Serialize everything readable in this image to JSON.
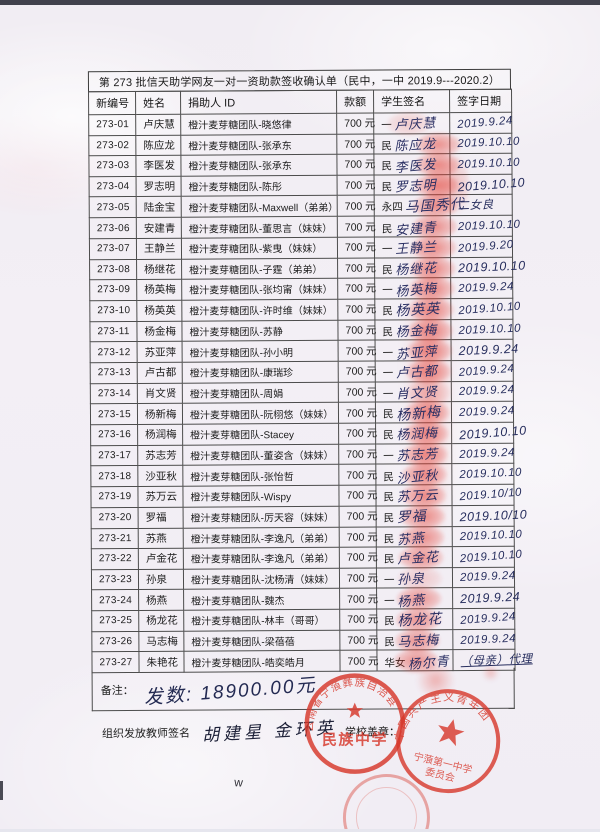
{
  "page": {
    "title": "第 273 批信天助学网友一对一资助款签收确认单（民中，一中 2019.9---2020.2）"
  },
  "table": {
    "headers": [
      "新编号",
      "姓名",
      "捐助人 ID",
      "款额",
      "学生签名",
      "签字日期"
    ],
    "rows": [
      {
        "id": "273-01",
        "name": "卢庆慧",
        "donor": "橙汁麦芽糖团队-晓悠律",
        "amount": "700 元",
        "school": "一",
        "sig": "卢庆慧",
        "date": "2019.9.24",
        "fp": "light"
      },
      {
        "id": "273-02",
        "name": "陈应龙",
        "donor": "橙汁麦芽糖团队-张承东",
        "amount": "700 元",
        "school": "民",
        "sig": "陈应龙",
        "date": "2019.10.10",
        "fp": "heavy"
      },
      {
        "id": "273-03",
        "name": "李医发",
        "donor": "橙汁麦芽糖团队-张承东",
        "amount": "700 元",
        "school": "民",
        "sig": "李医发",
        "date": "2019.10.10",
        "fp": "heavy"
      },
      {
        "id": "273-04",
        "name": "罗志明",
        "donor": "橙汁麦芽糖团队-陈彤",
        "amount": "700 元",
        "school": "民",
        "sig": "罗志明",
        "date": "2019.10.10",
        "fp": "heavy"
      },
      {
        "id": "273-05",
        "name": "陆金宝",
        "donor": "橙汁麦芽糖团队-Maxwell（弟弟）",
        "amount": "700 元",
        "school": "永四",
        "sig": "马国秀代",
        "date": "二女良",
        "fp": "heavy"
      },
      {
        "id": "273-06",
        "name": "安建青",
        "donor": "橙汁麦芽糖团队-董思言（妹妹）",
        "amount": "700 元",
        "school": "民",
        "sig": "安建青",
        "date": "2019.10.10",
        "fp": "heavy"
      },
      {
        "id": "273-07",
        "name": "王静兰",
        "donor": "橙汁麦芽糖团队-紫曳（妹妹）",
        "amount": "700 元",
        "school": "一",
        "sig": "王静兰",
        "date": "2019.9.20",
        "fp": "heavy"
      },
      {
        "id": "273-08",
        "name": "杨继花",
        "donor": "橙汁麦芽糖团队-子霆（弟弟）",
        "amount": "700 元",
        "school": "民",
        "sig": "杨继花",
        "date": "2019.10.10",
        "fp": "heavy"
      },
      {
        "id": "273-09",
        "name": "杨英梅",
        "donor": "橙汁麦芽糖团队-张均甯（妹妹）",
        "amount": "700 元",
        "school": "一",
        "sig": "杨英梅",
        "date": "2019.9.24",
        "fp": "heavy"
      },
      {
        "id": "273-10",
        "name": "杨英英",
        "donor": "橙汁麦芽糖团队-许时维（妹妹）",
        "amount": "700 元",
        "school": "民",
        "sig": "杨英英",
        "date": "2019.10.10",
        "fp": "heavy"
      },
      {
        "id": "273-11",
        "name": "杨金梅",
        "donor": "橙汁麦芽糖团队-苏静",
        "amount": "700 元",
        "school": "民",
        "sig": "杨金梅",
        "date": "2019.10.10",
        "fp": "heavy"
      },
      {
        "id": "273-12",
        "name": "苏亚萍",
        "donor": "橙汁麦芽糖团队-孙小明",
        "amount": "700 元",
        "school": "一",
        "sig": "苏亚萍",
        "date": "2019.9.24",
        "fp": "heavy"
      },
      {
        "id": "273-13",
        "name": "卢古都",
        "donor": "橙汁麦芽糖团队-康瑞珍",
        "amount": "700 元",
        "school": "一",
        "sig": "卢古都",
        "date": "2019.9.24",
        "fp": "heavy"
      },
      {
        "id": "273-14",
        "name": "肖文贤",
        "donor": "橙汁麦芽糖团队-周娟",
        "amount": "700 元",
        "school": "一",
        "sig": "肖文贤",
        "date": "2019.9.24",
        "fp": "light"
      },
      {
        "id": "273-15",
        "name": "杨新梅",
        "donor": "橙汁麦芽糖团队-阮栩悠（妹妹）",
        "amount": "700 元",
        "school": "民",
        "sig": "杨新梅",
        "date": "2019.9.24",
        "fp": "heavy"
      },
      {
        "id": "273-16",
        "name": "杨润梅",
        "donor": "橙汁麦芽糖团队-Stacey",
        "amount": "700 元",
        "school": "民",
        "sig": "杨润梅",
        "date": "2019.10.10",
        "fp": "heavy"
      },
      {
        "id": "273-17",
        "name": "苏志芳",
        "donor": "橙汁麦芽糖团队-董姿含（妹妹）",
        "amount": "700 元",
        "school": "一",
        "sig": "苏志芳",
        "date": "2019.9.24",
        "fp": "heavy"
      },
      {
        "id": "273-18",
        "name": "沙亚秋",
        "donor": "橙汁麦芽糖团队-张怡哲",
        "amount": "700 元",
        "school": "民",
        "sig": "沙亚秋",
        "date": "2019.10.10",
        "fp": "heavy"
      },
      {
        "id": "273-19",
        "name": "苏万云",
        "donor": "橙汁麦芽糖团队-Wispy",
        "amount": "700 元",
        "school": "民",
        "sig": "苏万云",
        "date": "2019.10/10",
        "fp": "heavy"
      },
      {
        "id": "273-20",
        "name": "罗福",
        "donor": "橙汁麦芽糖团队-厉天容（妹妹）",
        "amount": "700 元",
        "school": "民",
        "sig": "罗福",
        "date": "2019.10/10",
        "fp": "heavy"
      },
      {
        "id": "273-21",
        "name": "苏燕",
        "donor": "橙汁麦芽糖团队-李逸凡（弟弟）",
        "amount": "700 元",
        "school": "民",
        "sig": "苏燕",
        "date": "2019.10.10",
        "fp": "heavy"
      },
      {
        "id": "273-22",
        "name": "卢金花",
        "donor": "橙汁麦芽糖团队-李逸凡（弟弟）",
        "amount": "700 元",
        "school": "民",
        "sig": "卢金花",
        "date": "2019.10.10",
        "fp": "heavy"
      },
      {
        "id": "273-23",
        "name": "孙泉",
        "donor": "橙汁麦芽糖团队-沈杨清（妹妹）",
        "amount": "700 元",
        "school": "一",
        "sig": "孙泉",
        "date": "2019.9.24",
        "fp": "light"
      },
      {
        "id": "273-24",
        "name": "杨燕",
        "donor": "橙汁麦芽糖团队-魏杰",
        "amount": "700 元",
        "school": "一",
        "sig": "杨燕",
        "date": "2019.9.24",
        "fp": "heavy"
      },
      {
        "id": "273-25",
        "name": "杨龙花",
        "donor": "橙汁麦芽糖团队-林丰（哥哥）",
        "amount": "700 元",
        "school": "民",
        "sig": "杨龙花",
        "date": "2019.9.24",
        "fp": "heavy"
      },
      {
        "id": "273-26",
        "name": "马志梅",
        "donor": "橙汁麦芽糖团队-梁蓓蓓",
        "amount": "700 元",
        "school": "民",
        "sig": "马志梅",
        "date": "2019.9.24",
        "fp": "heavy"
      },
      {
        "id": "273-27",
        "name": "朱艳花",
        "donor": "橙汁麦芽糖团队-皓奕皓月",
        "amount": "700 元",
        "school": "华女",
        "sig": "杨尔青",
        "date": "（母亲）代理",
        "fp": "heavy",
        "underline_date": true
      }
    ]
  },
  "footer": {
    "remark_label": "备注：",
    "remark_handwriting": "发数: 18900.00元",
    "teacher_label": "组织发放教师签名",
    "teacher_signature": "胡建星 金环英",
    "stamp_label": "学校盖章：",
    "stray_mark": "w"
  },
  "stamps": {
    "left_arc": "云南省宁蒗彝族自治县",
    "left_center": "民族中学",
    "right_arc": "中国共产主义青年团",
    "right_line1": "宁蒗第一中学",
    "right_line2": "委员会",
    "stamp_color": "#d7372a"
  }
}
